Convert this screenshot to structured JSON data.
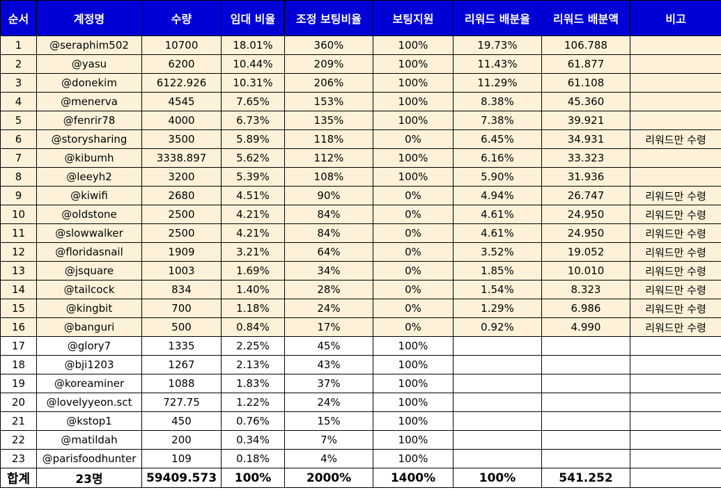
{
  "headers": [
    "순서",
    "계정명",
    "수량",
    "임대 비율",
    "조정 보팅비율",
    "보팅지원",
    "리워드 배분율",
    "리워드 배분액",
    "비고"
  ],
  "rows": [
    [
      "1",
      "@seraphim502",
      "10700",
      "18.01%",
      "360%",
      "100%",
      "19.73%",
      "106.788",
      ""
    ],
    [
      "2",
      "@yasu",
      "6200",
      "10.44%",
      "209%",
      "100%",
      "11.43%",
      "61.877",
      ""
    ],
    [
      "3",
      "@donekim",
      "6122.926",
      "10.31%",
      "206%",
      "100%",
      "11.29%",
      "61.108",
      ""
    ],
    [
      "4",
      "@menerva",
      "4545",
      "7.65%",
      "153%",
      "100%",
      "8.38%",
      "45.360",
      ""
    ],
    [
      "5",
      "@fenrir78",
      "4000",
      "6.73%",
      "135%",
      "100%",
      "7.38%",
      "39.921",
      ""
    ],
    [
      "6",
      "@storysharing",
      "3500",
      "5.89%",
      "118%",
      "0%",
      "6.45%",
      "34.931",
      "리워드만 수령"
    ],
    [
      "7",
      "@kibumh",
      "3338.897",
      "5.62%",
      "112%",
      "100%",
      "6.16%",
      "33.323",
      ""
    ],
    [
      "8",
      "@leeyh2",
      "3200",
      "5.39%",
      "108%",
      "100%",
      "5.90%",
      "31.936",
      ""
    ],
    [
      "9",
      "@kiwifi",
      "2680",
      "4.51%",
      "90%",
      "0%",
      "4.94%",
      "26.747",
      "리워드만 수령"
    ],
    [
      "10",
      "@oldstone",
      "2500",
      "4.21%",
      "84%",
      "0%",
      "4.61%",
      "24.950",
      "리워드만 수령"
    ],
    [
      "11",
      "@slowwalker",
      "2500",
      "4.21%",
      "84%",
      "0%",
      "4.61%",
      "24.950",
      "리워드만 수령"
    ],
    [
      "12",
      "@floridasnail",
      "1909",
      "3.21%",
      "64%",
      "0%",
      "3.52%",
      "19.052",
      "리워드만 수령"
    ],
    [
      "13",
      "@jsquare",
      "1003",
      "1.69%",
      "34%",
      "0%",
      "1.85%",
      "10.010",
      "리워드만 수령"
    ],
    [
      "14",
      "@tailcock",
      "834",
      "1.40%",
      "28%",
      "0%",
      "1.54%",
      "8.323",
      "리워드만 수령"
    ],
    [
      "15",
      "@kingbit",
      "700",
      "1.18%",
      "24%",
      "0%",
      "1.29%",
      "6.986",
      "리워드만 수령"
    ],
    [
      "16",
      "@banguri",
      "500",
      "0.84%",
      "17%",
      "0%",
      "0.92%",
      "4.990",
      "리워드만 수령"
    ],
    [
      "17",
      "@glory7",
      "1335",
      "2.25%",
      "45%",
      "100%",
      "",
      "",
      ""
    ],
    [
      "18",
      "@bji1203",
      "1267",
      "2.13%",
      "43%",
      "100%",
      "",
      "",
      ""
    ],
    [
      "19",
      "@koreaminer",
      "1088",
      "1.83%",
      "37%",
      "100%",
      "",
      "",
      ""
    ],
    [
      "20",
      "@lovelyyeon.sct",
      "727.75",
      "1.22%",
      "24%",
      "100%",
      "",
      "",
      ""
    ],
    [
      "21",
      "@kstop1",
      "450",
      "0.76%",
      "15%",
      "100%",
      "",
      "",
      ""
    ],
    [
      "22",
      "@matildah",
      "200",
      "0.34%",
      "7%",
      "100%",
      "",
      "",
      ""
    ],
    [
      "23",
      "@parisfoodhunter",
      "109",
      "0.18%",
      "4%",
      "100%",
      "",
      "",
      ""
    ]
  ],
  "highlighted_row_count": 16,
  "totals": [
    "합계",
    "23명",
    "59409.573",
    "100%",
    "2000%",
    "1400%",
    "100%",
    "541.252",
    ""
  ],
  "colors": {
    "header_bg": "#0000d6",
    "header_text": "#ffffff",
    "highlight_row_bg": "#fdf2d9",
    "border": "#000000"
  }
}
